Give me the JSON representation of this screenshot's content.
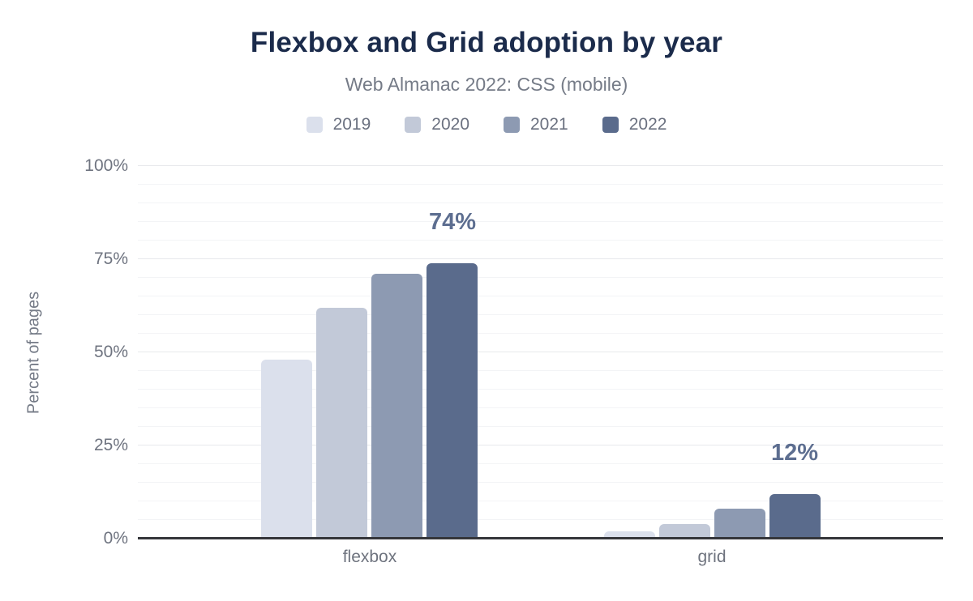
{
  "title": "Flexbox and Grid adoption by year",
  "subtitle": "Web Almanac 2022: CSS (mobile)",
  "colors": {
    "background": "#ffffff",
    "title": "#1b2b4b",
    "subtitle": "#757b87",
    "axis_text": "#6f7480",
    "axis_line": "#35363a",
    "gridline_minor": "#f3f4f6",
    "gridline_major": "#e7e9ec",
    "annotation": "#5d6e90"
  },
  "chart_data": {
    "type": "bar",
    "title": "Flexbox and Grid adoption by year",
    "subtitle": "Web Almanac 2022: CSS (mobile)",
    "categories": [
      "flexbox",
      "grid"
    ],
    "series": [
      {
        "name": "2019",
        "color": "#dbe0ec",
        "values": [
          48,
          2
        ]
      },
      {
        "name": "2020",
        "color": "#c2c9d8",
        "values": [
          62,
          4
        ]
      },
      {
        "name": "2021",
        "color": "#8d9ab2",
        "values": [
          71,
          8
        ]
      },
      {
        "name": "2022",
        "color": "#5a6b8c",
        "values": [
          74,
          12
        ]
      }
    ],
    "xlabel": "",
    "ylabel": "Percent of pages",
    "ylim": [
      0,
      100
    ],
    "yticks": [
      "0%",
      "25%",
      "50%",
      "75%",
      "100%"
    ],
    "minor_grid_step": 5,
    "major_grid_step": 25,
    "grid": "on",
    "legend_position": "top",
    "annotations": [
      {
        "text": "74%",
        "category": "flexbox",
        "series": "2022"
      },
      {
        "text": "12%",
        "category": "grid",
        "series": "2022"
      }
    ]
  }
}
